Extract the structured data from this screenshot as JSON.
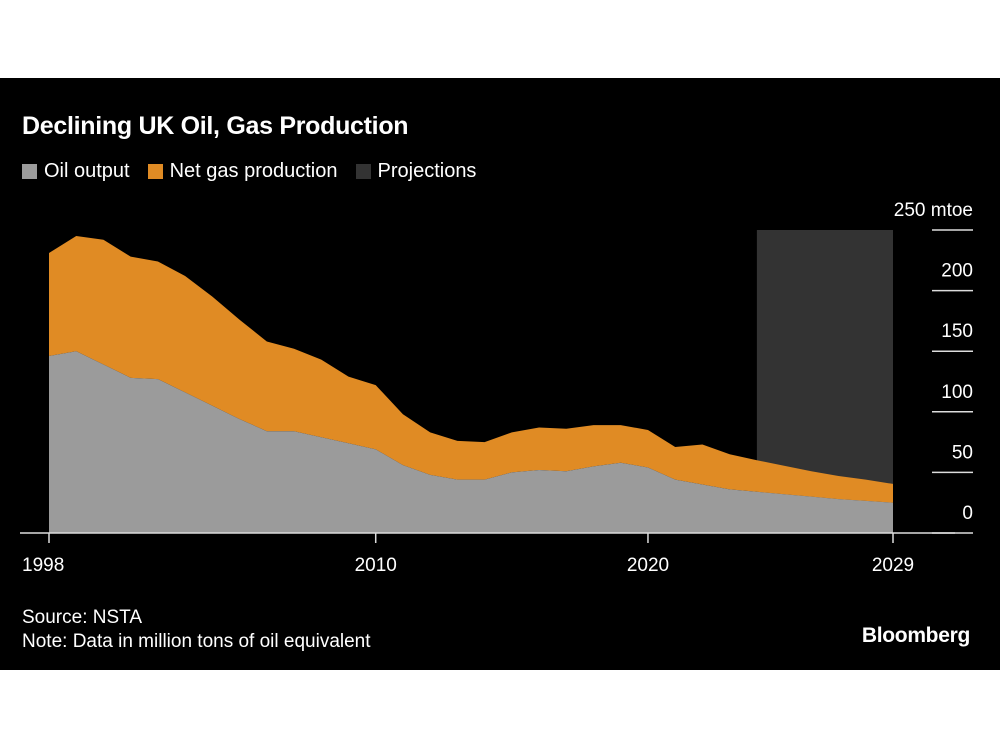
{
  "chart_data": {
    "type": "area",
    "stacked": true,
    "title": "Declining UK Oil, Gas Production",
    "legend": [
      "Oil output",
      "Net gas production",
      "Projections"
    ],
    "legend_placement": "top-left",
    "colors": {
      "oil": "#9b9b9b",
      "gas": "#e08b24",
      "projection": "#333333",
      "background": "#000000"
    },
    "x": [
      1998,
      1999,
      2000,
      2001,
      2002,
      2003,
      2004,
      2005,
      2006,
      2007,
      2008,
      2009,
      2010,
      2011,
      2012,
      2013,
      2014,
      2015,
      2016,
      2017,
      2018,
      2019,
      2020,
      2021,
      2022,
      2023,
      2024,
      2025,
      2026,
      2027,
      2028,
      2029
    ],
    "series": [
      {
        "name": "Oil output",
        "values": [
          146,
          150,
          139,
          128,
          127,
          116,
          105,
          94,
          84,
          84,
          79,
          74,
          69,
          56,
          48,
          44,
          44,
          50,
          52,
          51,
          55,
          58,
          54,
          44,
          40,
          36,
          34,
          32,
          30,
          28,
          26.5,
          25
        ]
      },
      {
        "name": "Net gas production",
        "values": [
          85,
          95,
          103,
          100,
          97,
          96,
          90,
          82,
          74,
          68,
          64,
          55,
          53,
          42,
          35,
          32,
          31,
          33,
          35,
          35,
          34,
          31,
          31,
          27,
          33,
          29,
          26,
          23.5,
          21,
          19,
          17.5,
          15.5
        ]
      }
    ],
    "projection_range": [
      2024,
      2029
    ],
    "xticks": [
      "1998",
      "2010",
      "2020",
      "2029"
    ],
    "yticks": [
      "0",
      "50",
      "100",
      "150",
      "200",
      "250 mtoe"
    ],
    "ylim": [
      0,
      250
    ],
    "xlim": [
      1998,
      2029
    ],
    "yaxis_side": "right",
    "grid": false
  },
  "footer": {
    "source": "Source: NSTA",
    "note": "Note: Data in million tons of oil equivalent",
    "brand": "Bloomberg"
  }
}
